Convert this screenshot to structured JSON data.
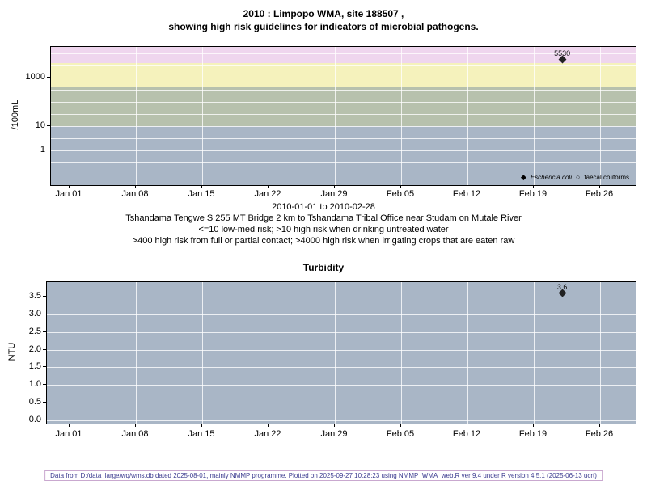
{
  "title": {
    "line1": "2010 : Limpopo WMA, site 188507 ,",
    "line2": "showing high risk guidelines for indicators of microbial pathogens."
  },
  "subtitle": {
    "line1": "2010-01-01 to 2010-02-28",
    "line2": "Tshandama Tengwe S 255 MT Bridge 2 km to Tshandama Tribal Office near Studam on Mutale River",
    "line3": "<=10 low-med risk; >10 high risk when drinking untreated water",
    "line4": ">400 high risk from full or partial contact; >4000 high risk when irrigating crops that are eaten raw"
  },
  "footer": "Data from D:/data_large/wq/wms.db dated 2025-08-01, mainly NMMP programme. Plotted on 2025-09-27 10:28:23 using NMMP_WMA_web.R ver 9.4 under R version 4.5.1 (2025-06-13 ucrt)",
  "chart_data": [
    {
      "type": "scatter",
      "title": "",
      "ylabel": "/100mL",
      "yscale": "log",
      "ylim": [
        0.04,
        18500
      ],
      "yticks": [
        "1",
        "10",
        "1000"
      ],
      "x_start": "2010-01-01",
      "x_end": "2010-02-28",
      "xticks": [
        "Jan 01",
        "Jan 08",
        "Jan 15",
        "Jan 22",
        "Jan 29",
        "Feb 05",
        "Feb 12",
        "Feb 19",
        "Feb 26"
      ],
      "plot_bg": "#a9b6c6",
      "grid": true,
      "legend_position": "bottom-right",
      "series": [
        {
          "name": "Eschericia coli",
          "marker": "filled-diamond",
          "points": [
            {
              "x": "2010-02-22",
              "y": 5530,
              "label": "5530"
            }
          ]
        },
        {
          "name": "faecal coliforms",
          "marker": "open-circle",
          "points": []
        }
      ],
      "risk_bands": [
        {
          "min": 4000,
          "color": "#efd6ee"
        },
        {
          "min": 400,
          "max": 4000,
          "color": "#f5f2bc"
        },
        {
          "min": 10,
          "max": 400,
          "color": "#b7c1ad"
        },
        {
          "max": 10,
          "color": "#a9b6c6"
        }
      ]
    },
    {
      "type": "scatter",
      "title": "Turbidity",
      "ylabel": "NTU",
      "yscale": "linear",
      "ylim": [
        0,
        3.9
      ],
      "yticks": [
        "0.0",
        "0.5",
        "1.0",
        "1.5",
        "2.0",
        "2.5",
        "3.0",
        "3.5"
      ],
      "x_start": "2010-01-01",
      "x_end": "2010-02-28",
      "xticks": [
        "Jan 01",
        "Jan 08",
        "Jan 15",
        "Jan 22",
        "Jan 29",
        "Feb 05",
        "Feb 12",
        "Feb 19",
        "Feb 26"
      ],
      "plot_bg": "#a9b6c6",
      "grid": true,
      "series": [
        {
          "name": "turbidity",
          "marker": "filled-diamond",
          "points": [
            {
              "x": "2010-02-22",
              "y": 3.6,
              "label": "3.6"
            }
          ]
        }
      ]
    }
  ]
}
